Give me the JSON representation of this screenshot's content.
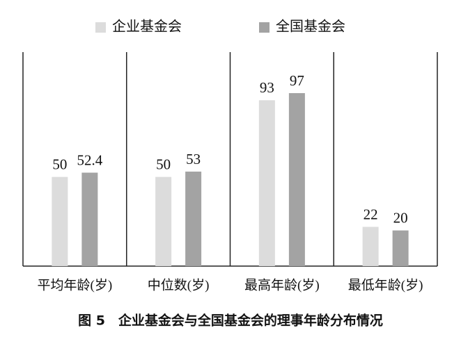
{
  "chart_data": {
    "type": "bar",
    "title": "图 5　企业基金会与全国基金会的理事年龄分布情况",
    "categories": [
      "平均年龄(岁)",
      "中位数(岁)",
      "最高年龄(岁)",
      "最低年龄(岁)"
    ],
    "series": [
      {
        "name": "企业基金会",
        "color": "#dcdcdc",
        "values": [
          50,
          50,
          93,
          22
        ]
      },
      {
        "name": "全国基金会",
        "color": "#a3a3a3",
        "values": [
          52.4,
          53,
          97,
          20
        ]
      }
    ],
    "ylim": [
      0,
      120
    ]
  }
}
